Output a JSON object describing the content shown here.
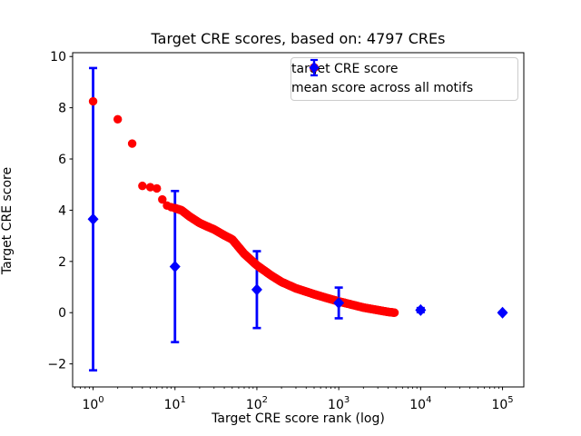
{
  "chart_data": {
    "type": "scatter",
    "title": "Target CRE scores, based on: 4797 CREs",
    "xlabel": "Target CRE score rank (log)",
    "ylabel": "Target CRE score",
    "xscale": "log",
    "xlim_log10": [
      -0.25,
      5.26
    ],
    "ylim": [
      -2.9,
      10.15
    ],
    "yticks": [
      -2,
      0,
      2,
      4,
      6,
      8,
      10
    ],
    "xtick_exponents": [
      0,
      1,
      2,
      3,
      4,
      5
    ],
    "grid": false,
    "legend_position": "upper right",
    "colors": {
      "target": "#ff0000",
      "mean": "#0000ff",
      "axis": "#000000",
      "legend_border": "#cccccc"
    },
    "series": [
      {
        "name": "target CRE score",
        "marker": "circle",
        "color": "#ff0000",
        "n_points_total": 4797,
        "anchor_points": [
          [
            1,
            8.25
          ],
          [
            2,
            7.55
          ],
          [
            3,
            6.6
          ],
          [
            4,
            4.95
          ],
          [
            5,
            4.9
          ],
          [
            6,
            4.85
          ],
          [
            7,
            4.42
          ],
          [
            8,
            4.18
          ],
          [
            9,
            4.12
          ],
          [
            10,
            4.08
          ],
          [
            12,
            4.0
          ],
          [
            15,
            3.76
          ],
          [
            20,
            3.5
          ],
          [
            25,
            3.36
          ],
          [
            30,
            3.25
          ],
          [
            40,
            3.02
          ],
          [
            50,
            2.86
          ],
          [
            70,
            2.3
          ],
          [
            100,
            1.85
          ],
          [
            150,
            1.45
          ],
          [
            200,
            1.2
          ],
          [
            300,
            0.95
          ],
          [
            500,
            0.72
          ],
          [
            700,
            0.58
          ],
          [
            1000,
            0.44
          ],
          [
            1500,
            0.3
          ],
          [
            2000,
            0.2
          ],
          [
            3000,
            0.1
          ],
          [
            4000,
            0.03
          ],
          [
            4797,
            0.0
          ]
        ]
      },
      {
        "name": "mean score across all motifs",
        "marker": "diamond",
        "color": "#0000ff",
        "points": [
          {
            "x": 1,
            "mean": 3.65,
            "std": 5.9
          },
          {
            "x": 10,
            "mean": 1.8,
            "std": 2.95
          },
          {
            "x": 100,
            "mean": 0.9,
            "std": 1.5
          },
          {
            "x": 1000,
            "mean": 0.38,
            "std": 0.6
          },
          {
            "x": 10000,
            "mean": 0.1,
            "std": 0.08
          },
          {
            "x": 100000,
            "mean": 0.0,
            "std": 0.03
          }
        ]
      }
    ]
  }
}
